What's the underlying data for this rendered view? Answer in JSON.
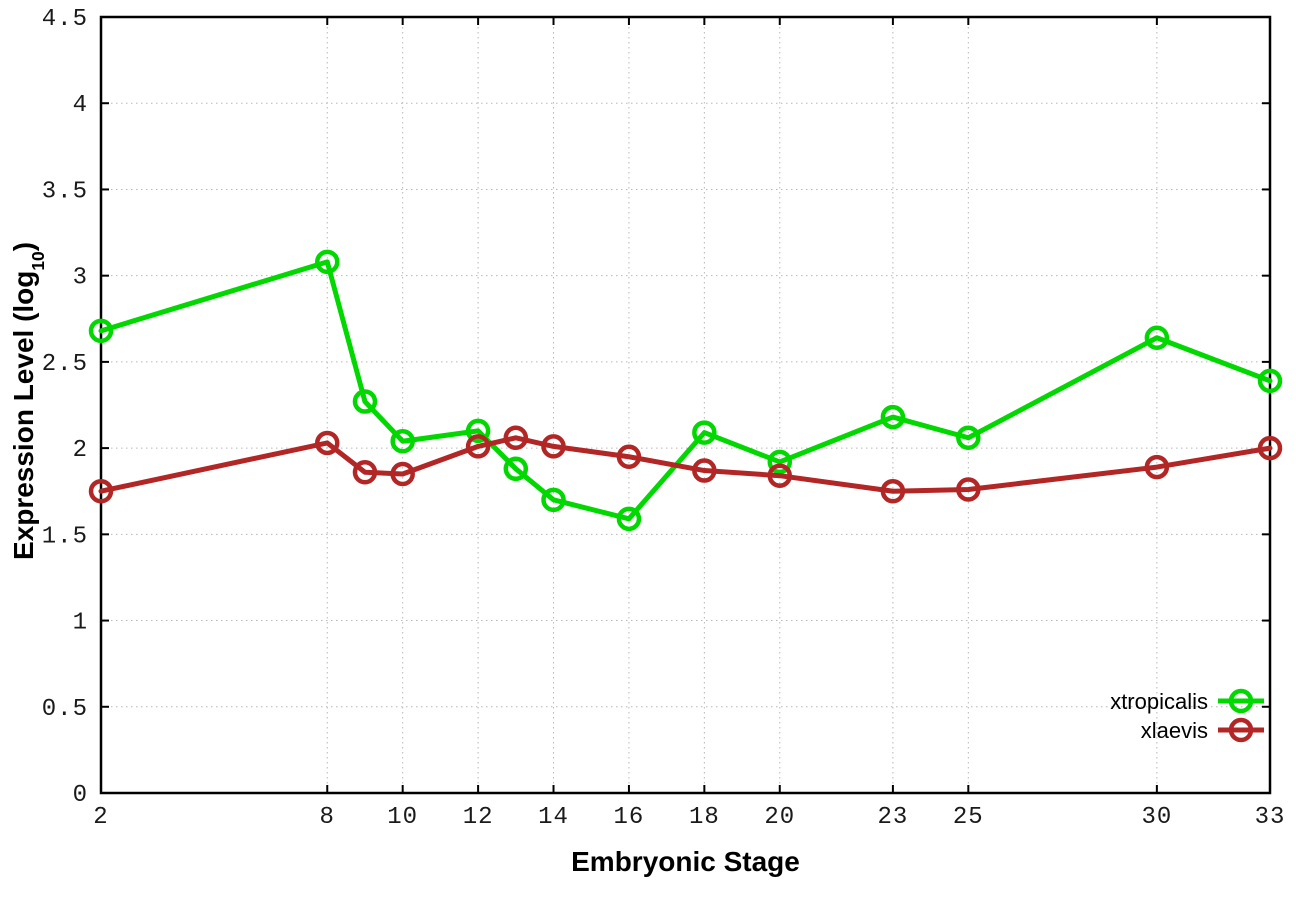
{
  "figure": {
    "background": "#ffffff",
    "plot_border_color": "#000000",
    "grid_color": "#b8b8b8"
  },
  "axis_titles": {
    "x": "Embryonic Stage",
    "y_full": "Expression Level (log10)",
    "y_main": "Expression Level (log",
    "y_sub": "10",
    "y_end": ")"
  },
  "chart_data": {
    "type": "line",
    "title": "",
    "xlabel": "Embryonic Stage",
    "ylabel": "Expression Level (log10)",
    "xlim": [
      2,
      33
    ],
    "ylim": [
      0,
      4.5
    ],
    "grid": true,
    "legend_position": "bottom-right-inside",
    "x": [
      2,
      8,
      9,
      10,
      12,
      13,
      14,
      16,
      18,
      20,
      23,
      25,
      30,
      33
    ],
    "xticks": [
      2,
      8,
      10,
      12,
      14,
      16,
      18,
      20,
      23,
      25,
      30,
      33
    ],
    "xtick_labels": [
      "2",
      "8",
      "10",
      "12",
      "14",
      "16",
      "18",
      "20",
      "23",
      "25",
      "30",
      "33"
    ],
    "yticks": [
      0,
      0.5,
      1,
      1.5,
      2,
      2.5,
      3,
      3.5,
      4,
      4.5
    ],
    "ytick_labels": [
      "0",
      "0.5",
      "1",
      "1.5",
      "2",
      "2.5",
      "3",
      "3.5",
      "4",
      "4.5"
    ],
    "series": [
      {
        "name": "xtropicalis",
        "color": "#00d800",
        "marker": "open-circle",
        "values": [
          2.68,
          3.08,
          2.27,
          2.04,
          2.1,
          1.88,
          1.7,
          1.59,
          2.09,
          1.92,
          2.18,
          2.06,
          2.64,
          2.39
        ]
      },
      {
        "name": "xlaevis",
        "color": "#b22626",
        "marker": "open-circle",
        "values": [
          1.75,
          2.03,
          1.86,
          1.85,
          2.01,
          2.06,
          2.01,
          1.95,
          1.87,
          1.84,
          1.75,
          1.76,
          1.89,
          2.0
        ]
      }
    ]
  }
}
